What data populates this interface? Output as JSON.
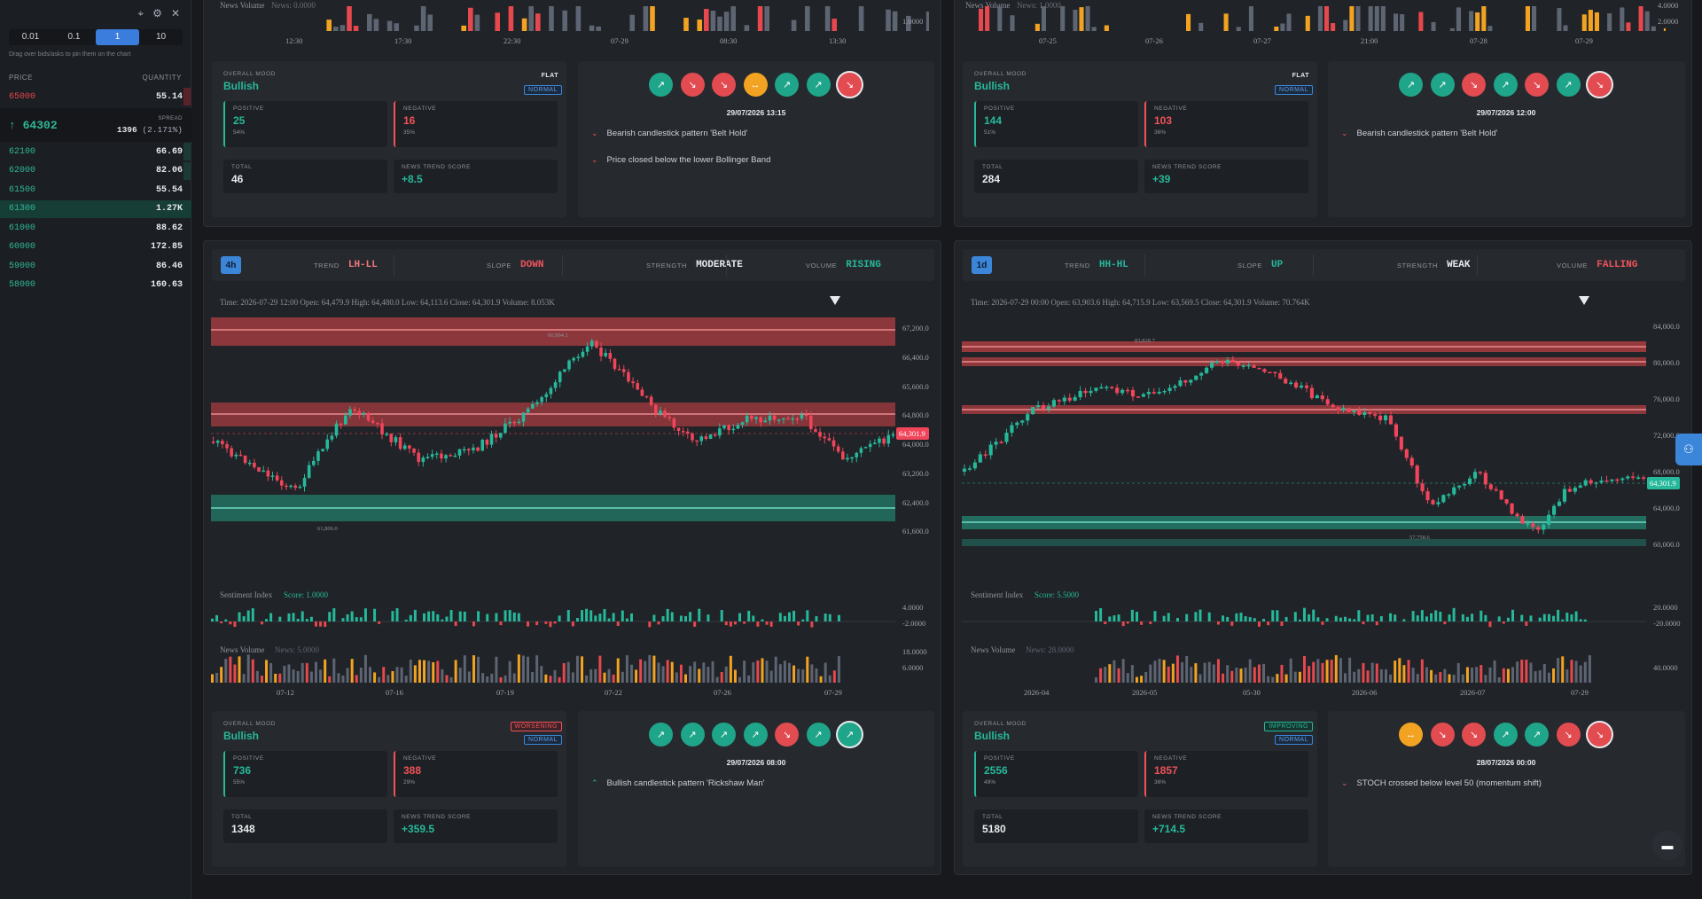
{
  "orderbook": {
    "steps": [
      "0.01",
      "0.1",
      "1",
      "10"
    ],
    "active_step": "1",
    "hint": "Drag over bids/asks to pin them on the chart",
    "col_price": "PRICE",
    "col_qty": "QUANTITY",
    "asks": [
      {
        "price": "65000",
        "qty": "55.14"
      }
    ],
    "mid_price": "64302",
    "spread_label": "SPREAD",
    "spread_value": "1396",
    "spread_pct": "(2.171%)",
    "bids": [
      {
        "price": "62100",
        "qty": "66.69"
      },
      {
        "price": "62000",
        "qty": "82.06"
      },
      {
        "price": "61500",
        "qty": "55.54"
      },
      {
        "price": "61300",
        "qty": "1.27K"
      },
      {
        "price": "61000",
        "qty": "88.62"
      },
      {
        "price": "60000",
        "qty": "172.85"
      },
      {
        "price": "59000",
        "qty": "86.46"
      },
      {
        "price": "58000",
        "qty": "160.63"
      }
    ]
  },
  "panels": {
    "tl": {
      "news_label": "News Volume",
      "news_score": "News: 0.0000",
      "news_axis": "1.0000",
      "x_ticks": [
        "12:30",
        "17:30",
        "22:30",
        "07-29",
        "08:30",
        "13:30"
      ],
      "mood_label": "OVERALL MOOD",
      "mood": "Bullish",
      "trend_tag": "FLAT",
      "state_tag": "NORMAL",
      "pos_label": "POSITIVE",
      "pos": "25",
      "pos_pct": "54%",
      "neg_label": "NEGATIVE",
      "neg": "16",
      "neg_pct": "35%",
      "total_label": "TOTAL",
      "total": "46",
      "score_label": "NEWS TREND SCORE",
      "score": "+8.5",
      "date": "29/07/2026 13:15",
      "signals": [
        "Bearish candlestick pattern 'Belt Hold'",
        "Price closed below the lower Bollinger Band"
      ]
    },
    "tr": {
      "news_label": "News Volume",
      "news_score": "News: 1.0000",
      "news_axis_top": "4.0000",
      "news_axis": "2.0000",
      "x_ticks": [
        "07-25",
        "07-26",
        "07-27",
        "21:00",
        "07-28",
        "07-29"
      ],
      "mood_label": "OVERALL MOOD",
      "mood": "Bullish",
      "trend_tag": "FLAT",
      "state_tag": "NORMAL",
      "pos_label": "POSITIVE",
      "pos": "144",
      "pos_pct": "51%",
      "neg_label": "NEGATIVE",
      "neg": "103",
      "neg_pct": "36%",
      "total_label": "TOTAL",
      "total": "284",
      "score_label": "NEWS TREND SCORE",
      "score": "+39",
      "date": "29/07/2026 12:00",
      "signals": [
        "Bearish candlestick pattern 'Belt Hold'"
      ]
    },
    "bl": {
      "timeframe": "4h",
      "trend_label": "TREND",
      "trend": "LH-LL",
      "slope_label": "SLOPE",
      "slope": "DOWN",
      "strength_label": "STRENGTH",
      "strength": "MODERATE",
      "volume_label": "VOLUME",
      "volume": "RISING",
      "ohlc": "Time: 2026-07-29 12:00    Open: 64,479.9    High: 64,480.0    Low: 64,113.6    Close: 64,301.9    Volume: 8.053K",
      "price_ticks": [
        "67,200.0",
        "66,400.0",
        "65,600.0",
        "64,800.0",
        "64,000.0",
        "63,200.0",
        "62,400.0",
        "61,600.0"
      ],
      "last_price": "64,301.9",
      "hi_mark": "66,994.1",
      "lo_mark": "61,806.0",
      "sent_label": "Sentiment Index",
      "sent_score": "Score: 1.0000",
      "sent_ticks": [
        "4.0000",
        "-2.0000"
      ],
      "news_label": "News Volume",
      "news_score": "News: 5.0000",
      "news_ticks": [
        "18.0000",
        "6.0000"
      ],
      "x_ticks": [
        "07-12",
        "07-16",
        "07-19",
        "07-22",
        "07-26",
        "07-29"
      ],
      "mood_label": "OVERALL MOOD",
      "mood": "Bullish",
      "trend_tag": "WORSENING",
      "state_tag": "NORMAL",
      "pos_label": "POSITIVE",
      "pos": "736",
      "pos_pct": "55%",
      "neg_label": "NEGATIVE",
      "neg": "388",
      "neg_pct": "29%",
      "total_label": "TOTAL",
      "total": "1348",
      "score_label": "NEWS TREND SCORE",
      "score": "+359.5",
      "date": "29/07/2026 08:00",
      "signals": [
        "Bullish candlestick pattern 'Rickshaw Man'"
      ]
    },
    "br": {
      "timeframe": "1d",
      "trend_label": "TREND",
      "trend": "HH-HL",
      "slope_label": "SLOPE",
      "slope": "UP",
      "strength_label": "STRENGTH",
      "strength": "WEAK",
      "volume_label": "VOLUME",
      "volume": "FALLING",
      "ohlc": "Time: 2026-07-29 00:00    Open: 63,903.6    High: 64,715.9    Low: 63,569.5    Close: 64,301.9    Volume: 70.764K",
      "price_ticks": [
        "84,000.0",
        "80,000.0",
        "76,000.0",
        "72,000.0",
        "68,000.0",
        "64,000.0",
        "60,000.0"
      ],
      "last_price": "64,301.9",
      "hi_mark": "83,828.7",
      "lo_mark": "57,758.6",
      "sent_label": "Sentiment Index",
      "sent_score": "Score: 5.5000",
      "sent_ticks": [
        "20.0000",
        "-20.0000"
      ],
      "news_label": "News Volume",
      "news_score": "News: 28.0000",
      "news_ticks": [
        "40.0000"
      ],
      "x_ticks": [
        "2026-04",
        "2026-05",
        "05-30",
        "2026-06",
        "2026-07",
        "07-29"
      ],
      "mood_label": "OVERALL MOOD",
      "mood": "Bullish",
      "trend_tag": "IMPROVING",
      "state_tag": "NORMAL",
      "pos_label": "POSITIVE",
      "pos": "2556",
      "pos_pct": "49%",
      "neg_label": "NEGATIVE",
      "neg": "1857",
      "neg_pct": "36%",
      "total_label": "TOTAL",
      "total": "5180",
      "score_label": "NEWS TREND SCORE",
      "score": "+714.5",
      "date": "28/07/2026 00:00",
      "signals": [
        "STOCH crossed below level 50 (momentum shift)"
      ]
    }
  },
  "colors": {
    "green": "#26b89a",
    "red": "#f0535a",
    "orange": "#f2a321",
    "blue": "#3b86d9"
  }
}
